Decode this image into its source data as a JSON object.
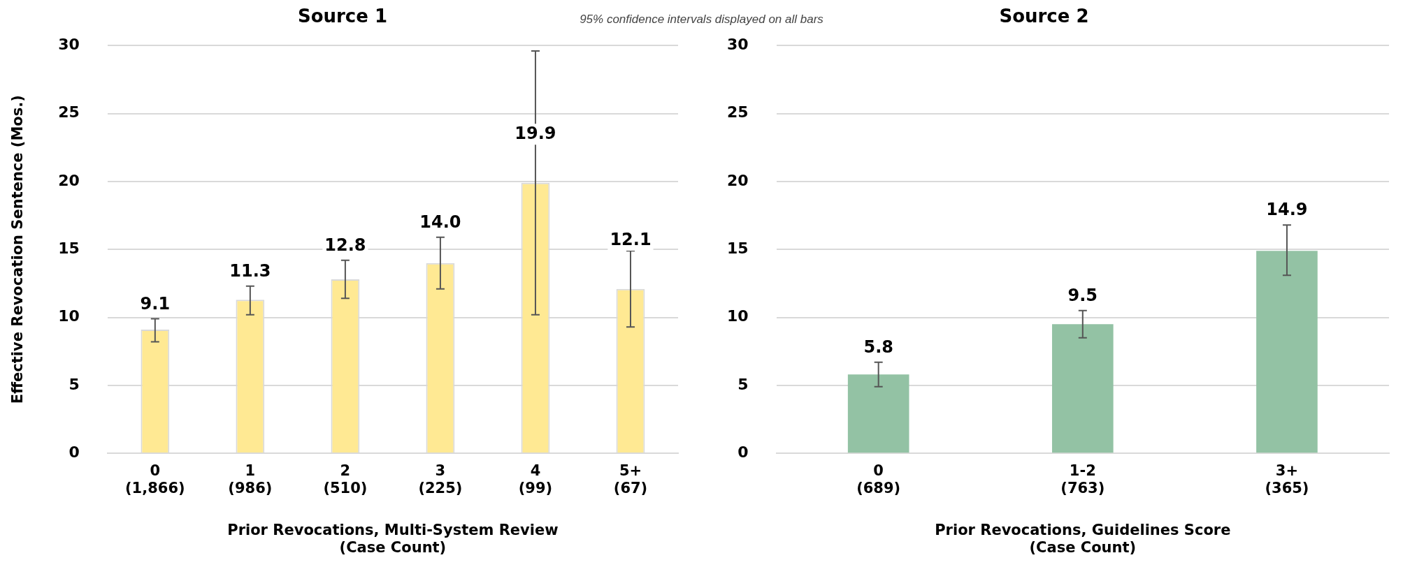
{
  "chart_data": [
    {
      "type": "bar",
      "title": "Source 1",
      "xlabel": "Prior Revocations, Multi-System Review\n(Case Count)",
      "ylabel": "Effective Revocation Sentence (Mos.)",
      "categories": [
        "0\n(1,866)",
        "1\n(986)",
        "2\n(510)",
        "3\n(225)",
        "4\n(99)",
        "5+\n(67)"
      ],
      "values": [
        9.1,
        11.3,
        12.8,
        14.0,
        19.9,
        12.1
      ],
      "errors": [
        [
          8.2,
          9.9
        ],
        [
          10.2,
          12.3
        ],
        [
          11.4,
          14.2
        ],
        [
          12.1,
          15.9
        ],
        [
          10.2,
          29.6
        ],
        [
          9.3,
          14.9
        ]
      ],
      "color": "#ffe993",
      "value_labels": [
        "9.1",
        "11.3",
        "12.8",
        "14.0",
        "19.9",
        "12.1"
      ],
      "ylim": [
        0,
        30
      ],
      "yticks": [
        0,
        5,
        10,
        15,
        20,
        25,
        30
      ],
      "grid": "y",
      "legend": false,
      "annotations": [
        "95% confidence intervals displayed on all bars"
      ]
    },
    {
      "type": "bar",
      "title": "Source 2",
      "xlabel": "Prior Revocations, Guidelines Score\n(Case Count)",
      "categories": [
        "0\n(689)",
        "1-2\n(763)",
        "3+\n(365)"
      ],
      "values": [
        5.8,
        9.5,
        14.9
      ],
      "errors": [
        [
          4.9,
          6.7
        ],
        [
          8.5,
          10.5
        ],
        [
          13.1,
          16.8
        ]
      ],
      "color": "#93c2a4",
      "value_labels": [
        "5.8",
        "9.5",
        "14.9"
      ],
      "ylim": [
        0,
        30
      ],
      "yticks": [
        0,
        5,
        10,
        15,
        20,
        25,
        30
      ],
      "grid": "y",
      "legend": false
    }
  ]
}
